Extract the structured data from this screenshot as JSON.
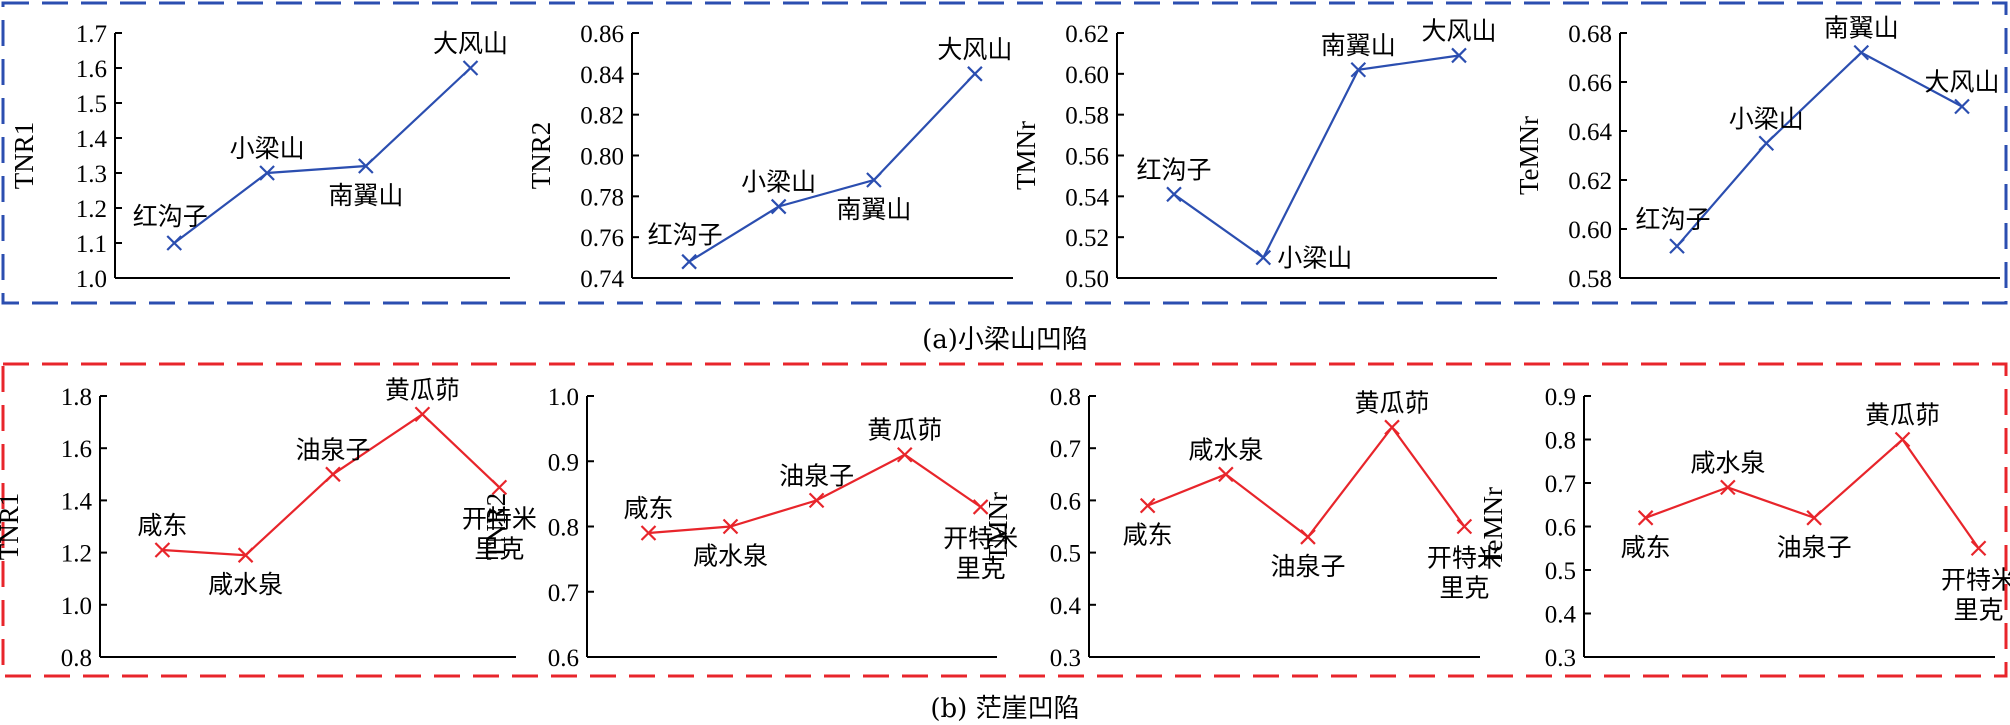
{
  "colors": {
    "group_a": "#2b4eb0",
    "group_b": "#e8252b",
    "axis": "#000000"
  },
  "captions": {
    "a": "(a)小梁山凹陷",
    "b": "(b) 茫崖凹陷"
  },
  "chart_data": [
    {
      "type": "line",
      "group": "a",
      "ylabel": "TNR1",
      "xlabel": "",
      "ylim": [
        1.0,
        1.7
      ],
      "yticks": [
        "1.0",
        "1.1",
        "1.2",
        "1.3",
        "1.4",
        "1.5",
        "1.6",
        "1.7"
      ],
      "categories": [
        "红沟子",
        "小梁山",
        "南翼山",
        "大风山"
      ],
      "values": [
        1.1,
        1.3,
        1.32,
        1.6
      ],
      "label_pos": [
        "top-left",
        "top",
        "bottom",
        "top"
      ]
    },
    {
      "type": "line",
      "group": "a",
      "ylabel": "TNR2",
      "xlabel": "",
      "ylim": [
        0.74,
        0.86
      ],
      "yticks": [
        "0.74",
        "0.76",
        "0.78",
        "0.80",
        "0.82",
        "0.84",
        "0.86"
      ],
      "categories": [
        "红沟子",
        "小梁山",
        "南翼山",
        "大风山"
      ],
      "values": [
        0.748,
        0.775,
        0.788,
        0.84
      ],
      "label_pos": [
        "top-left",
        "top",
        "bottom",
        "top"
      ]
    },
    {
      "type": "line",
      "group": "a",
      "ylabel": "TMNr",
      "xlabel": "",
      "ylim": [
        0.5,
        0.62
      ],
      "yticks": [
        "0.50",
        "0.52",
        "0.54",
        "0.56",
        "0.58",
        "0.60",
        "0.62"
      ],
      "categories": [
        "红沟子",
        "小梁山",
        "南翼山",
        "大风山"
      ],
      "values": [
        0.541,
        0.51,
        0.602,
        0.609
      ],
      "label_pos": [
        "top",
        "right",
        "top",
        "top"
      ]
    },
    {
      "type": "line",
      "group": "a",
      "ylabel": "TeMNr",
      "xlabel": "",
      "ylim": [
        0.58,
        0.68
      ],
      "yticks": [
        "0.58",
        "0.60",
        "0.62",
        "0.64",
        "0.66",
        "0.68"
      ],
      "categories": [
        "红沟子",
        "小梁山",
        "南翼山",
        "大风山"
      ],
      "values": [
        0.593,
        0.635,
        0.672,
        0.65
      ],
      "label_pos": [
        "top-left",
        "top",
        "top",
        "top"
      ]
    },
    {
      "type": "line",
      "group": "b",
      "ylabel": "TNR1",
      "xlabel": "",
      "ylim": [
        0.8,
        1.8
      ],
      "yticks": [
        "0.8",
        "1.0",
        "1.2",
        "1.4",
        "1.6",
        "1.8"
      ],
      "categories": [
        "咸东",
        "咸水泉",
        "油泉子",
        "黄瓜茆",
        "开特米里克"
      ],
      "values": [
        1.21,
        1.19,
        1.5,
        1.73,
        1.45
      ],
      "label_pos": [
        "top",
        "bottom",
        "top",
        "top",
        "bottom2"
      ]
    },
    {
      "type": "line",
      "group": "b",
      "ylabel": "TNR2",
      "xlabel": "",
      "ylim": [
        0.6,
        1.0
      ],
      "yticks": [
        "0.6",
        "0.7",
        "0.8",
        "0.9",
        "1.0"
      ],
      "categories": [
        "咸东",
        "咸水泉",
        "油泉子",
        "黄瓜茆",
        "开特米里克"
      ],
      "values": [
        0.79,
        0.8,
        0.84,
        0.91,
        0.83
      ],
      "label_pos": [
        "top",
        "bottom",
        "top",
        "top",
        "bottom2"
      ]
    },
    {
      "type": "line",
      "group": "b",
      "ylabel": "TMNr",
      "xlabel": "",
      "ylim": [
        0.3,
        0.8
      ],
      "yticks": [
        "0.3",
        "0.4",
        "0.5",
        "0.6",
        "0.7",
        "0.8"
      ],
      "categories": [
        "咸东",
        "咸水泉",
        "油泉子",
        "黄瓜茆",
        "开特米里克"
      ],
      "values": [
        0.59,
        0.65,
        0.53,
        0.74,
        0.55
      ],
      "label_pos": [
        "bottom",
        "top",
        "bottom",
        "top",
        "bottom2"
      ]
    },
    {
      "type": "line",
      "group": "b",
      "ylabel": "TeMNr",
      "xlabel": "",
      "ylim": [
        0.3,
        0.9
      ],
      "yticks": [
        "0.3",
        "0.4",
        "0.5",
        "0.6",
        "0.7",
        "0.8",
        "0.9"
      ],
      "categories": [
        "咸东",
        "咸水泉",
        "油泉子",
        "黄瓜茆",
        "开特米里克"
      ],
      "values": [
        0.62,
        0.69,
        0.62,
        0.8,
        0.55
      ],
      "label_pos": [
        "bottom",
        "top",
        "bottom",
        "top",
        "bottom2"
      ]
    }
  ]
}
